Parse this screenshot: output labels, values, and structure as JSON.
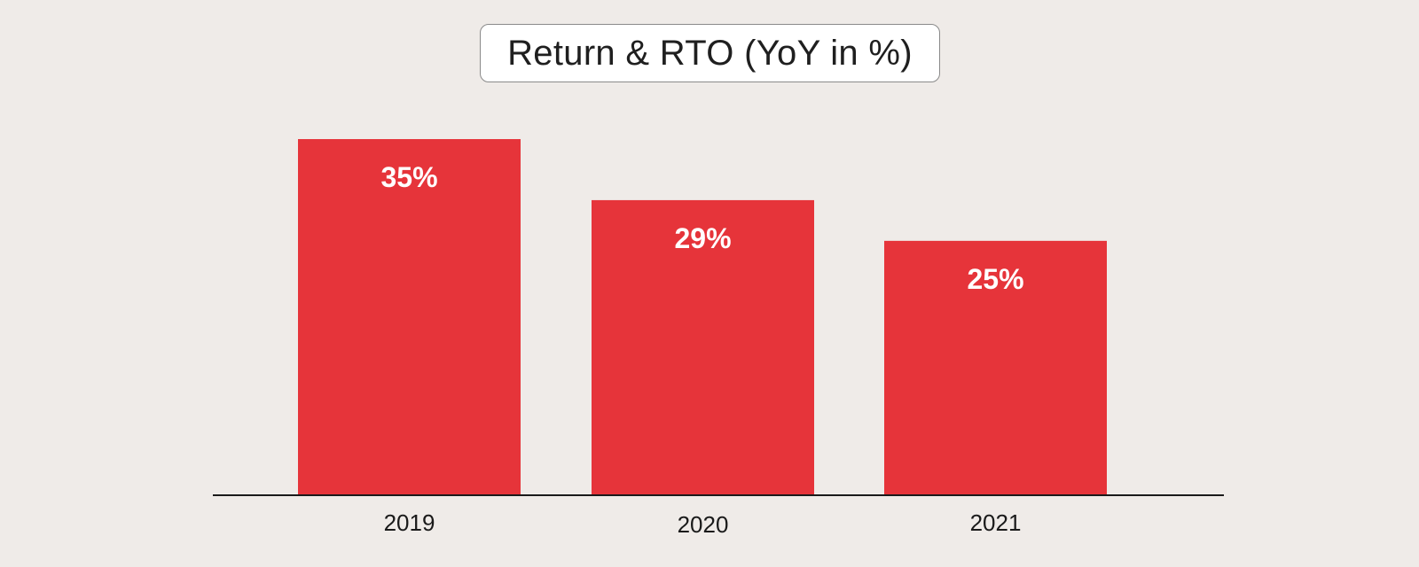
{
  "chart_data": {
    "type": "bar",
    "title": "Return & RTO (YoY in %)",
    "categories": [
      "2019",
      "2020",
      "2021"
    ],
    "values": [
      35,
      29,
      25
    ],
    "value_labels": [
      "35%",
      "29%",
      "25%"
    ],
    "xlabel": "",
    "ylabel": "",
    "ylim": [
      0,
      35
    ],
    "grid": false,
    "legend": "none",
    "colors": {
      "bar": "#e6343a",
      "bar_label": "#ffffff",
      "axis": "#1a1a1a",
      "tick_label": "#1a1a1a",
      "background": "#efebe8"
    }
  }
}
